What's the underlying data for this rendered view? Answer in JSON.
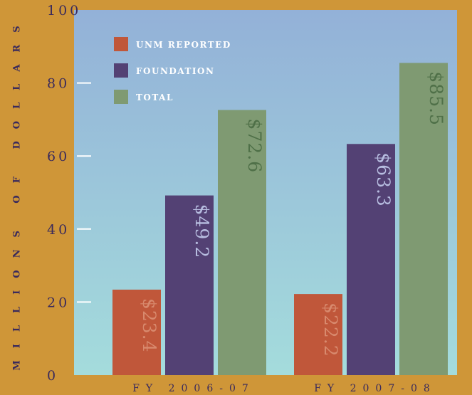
{
  "chart_data": {
    "type": "bar",
    "title": "",
    "xlabel": "",
    "ylabel": "MILLIONS OF DOLLARS",
    "ylim": [
      0,
      100
    ],
    "yticks": [
      "0",
      "20",
      "40",
      "60",
      "80",
      "100"
    ],
    "categories": [
      "FY 2006-07",
      "FY 2007-08"
    ],
    "series": [
      {
        "name": "UNM REPORTED",
        "values": [
          23.4,
          22.2
        ],
        "labels": [
          "$23.4",
          "$22.2"
        ],
        "color": "#c0573a",
        "label_color": "#d88a6e"
      },
      {
        "name": "FOUNDATION",
        "values": [
          49.2,
          63.3
        ],
        "labels": [
          "$49.2",
          "$63.3"
        ],
        "color": "#534174",
        "label_color": "#b7bde0"
      },
      {
        "name": "TOTAL",
        "values": [
          72.6,
          85.5
        ],
        "labels": [
          "$72.6",
          "$85.5"
        ],
        "color": "#7f9a72",
        "label_color": "#4f7048"
      }
    ],
    "legend": "top-left",
    "grid": false
  },
  "colors": {
    "page_background": "#cf9638",
    "plot_gradient_top": "#93b1d8",
    "plot_gradient_bottom": "#a4dcdc",
    "axis_text": "#3a2a5c",
    "tick_marks": "#ffffff"
  }
}
